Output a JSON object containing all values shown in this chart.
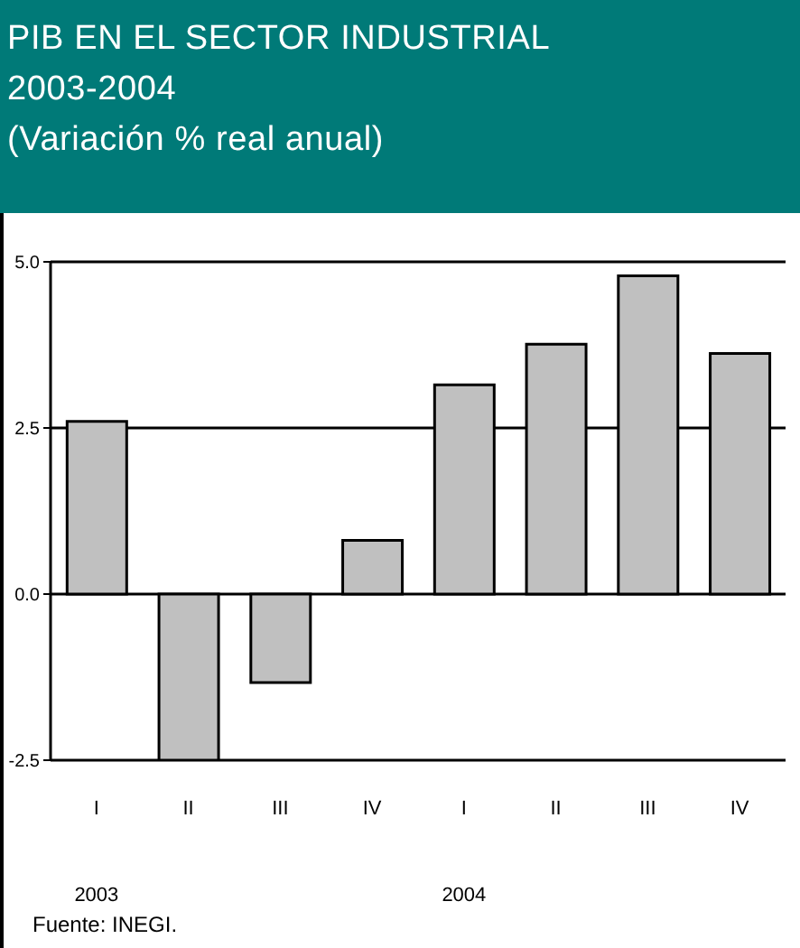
{
  "chart_data": {
    "type": "bar",
    "title": "PIB EN EL SECTOR INDUSTRIAL\n2003-2004",
    "subtitle": "(Variación % real anual)",
    "categories": [
      "I",
      "II",
      "III",
      "IV",
      "I",
      "II",
      "III",
      "IV"
    ],
    "values": [
      2.6,
      -2.5,
      -1.33,
      0.81,
      3.15,
      3.76,
      4.79,
      3.62
    ],
    "color": "#c0c0c0",
    "ylim": [
      -2.5,
      5.0
    ],
    "yticks": [
      {
        "value": -2.5,
        "label": "-2.5"
      },
      {
        "value": 0,
        "label": "0.0"
      },
      {
        "value": 2.5,
        "label": "2.5"
      },
      {
        "value": 5,
        "label": "5.0"
      }
    ],
    "grid": "y",
    "annotations": [
      "2003",
      "2004",
      "Fuente: INEGI."
    ]
  }
}
